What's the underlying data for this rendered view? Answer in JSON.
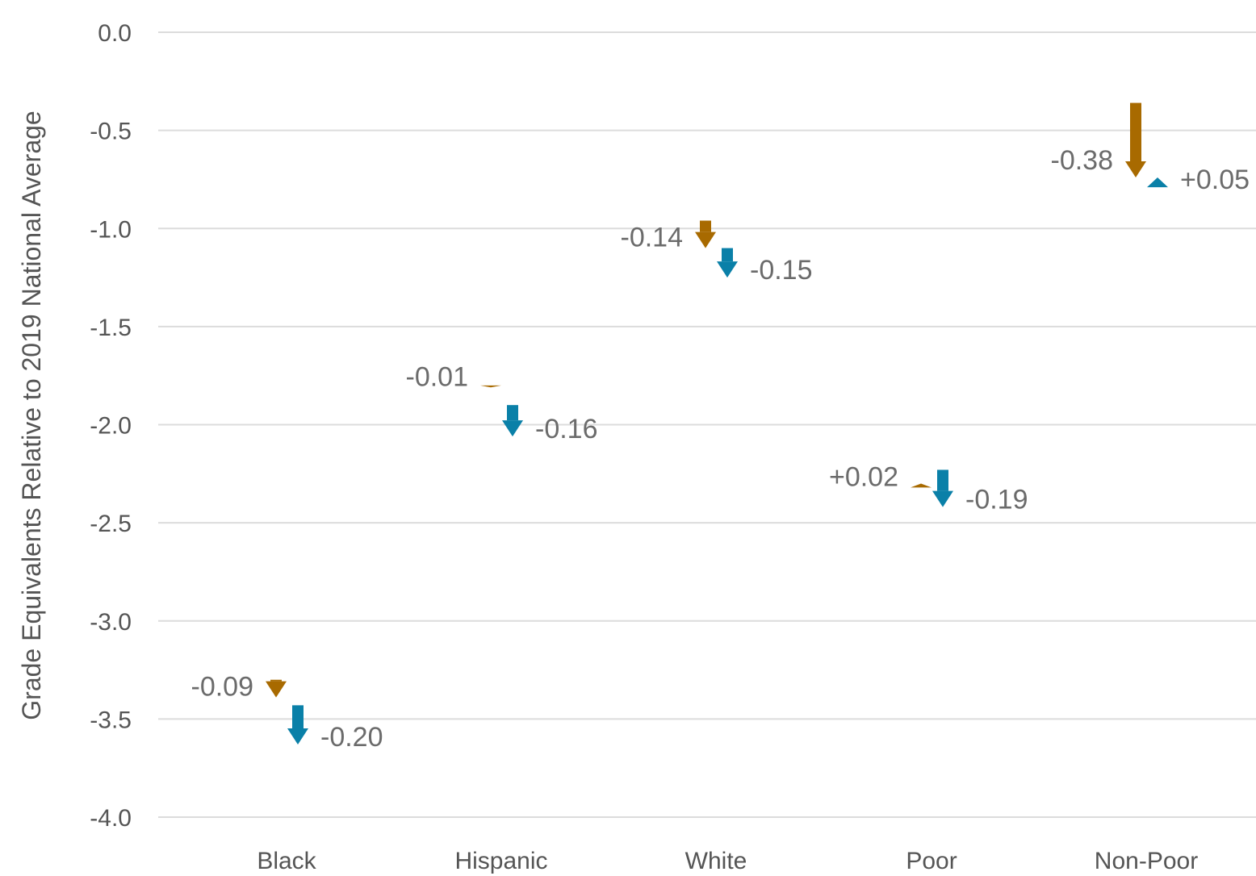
{
  "chart_data": {
    "type": "arrow-change",
    "title": "",
    "ylabel": "Grade Equivalents Relative to 2019 National Average",
    "xlabel": "",
    "ylim": [
      -4.0,
      0.0
    ],
    "yticks": [
      0.0,
      -0.5,
      -1.0,
      -1.5,
      -2.0,
      -2.5,
      -3.0,
      -3.5,
      -4.0
    ],
    "ytick_labels": [
      "0.0",
      "-0.5",
      "-1.0",
      "-1.5",
      "-2.0",
      "-2.5",
      "-3.0",
      "-3.5",
      "-4.0"
    ],
    "grid": true,
    "categories": [
      "Black",
      "Hispanic",
      "White",
      "Poor",
      "Non-Poor"
    ],
    "series": [
      {
        "color": "#a86a00",
        "start": [
          -3.3,
          -1.8,
          -0.96,
          -2.32,
          -0.36
        ],
        "end": [
          -3.39,
          -1.81,
          -1.1,
          -2.3,
          -0.74
        ],
        "change_labels": [
          "-0.09",
          "-0.01",
          "-0.14",
          "+0.02",
          "-0.38"
        ]
      },
      {
        "color": "#0a80a8",
        "start": [
          -3.43,
          -1.9,
          -1.1,
          -2.23,
          -0.79
        ],
        "end": [
          -3.63,
          -2.06,
          -1.25,
          -2.42,
          -0.74
        ],
        "change_labels": [
          "-0.20",
          "-0.16",
          "-0.15",
          "-0.19",
          "+0.05"
        ]
      }
    ]
  }
}
